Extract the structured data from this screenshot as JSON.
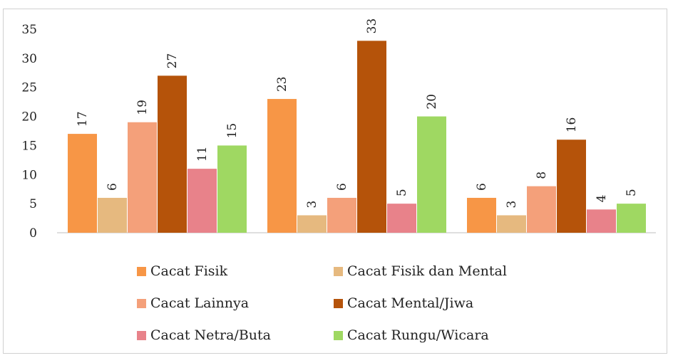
{
  "chart_data": {
    "type": "bar",
    "title": "",
    "xlabel": "",
    "ylabel": "",
    "ylim": [
      0,
      35
    ],
    "yticks": [
      "0",
      "5",
      "10",
      "15",
      "20",
      "25",
      "30",
      "35"
    ],
    "categories": [
      "",
      "",
      ""
    ],
    "grid": false,
    "legend_position": "bottom",
    "series": [
      {
        "name": "Cacat Fisik",
        "color": "#f79646",
        "values": [
          17,
          23,
          6
        ]
      },
      {
        "name": "Cacat Fisik dan Mental",
        "color": "#e6b97f",
        "values": [
          6,
          3,
          3
        ]
      },
      {
        "name": "Cacat Lainnya",
        "color": "#f4a07a",
        "values": [
          19,
          6,
          8
        ]
      },
      {
        "name": "Cacat Mental/Jiwa",
        "color": "#b5530a",
        "values": [
          27,
          33,
          16
        ]
      },
      {
        "name": "Cacat Netra/Buta",
        "color": "#e8828a",
        "values": [
          11,
          5,
          4
        ]
      },
      {
        "name": "Cacat Rungu/Wicara",
        "color": "#9fd862",
        "values": [
          15,
          20,
          5
        ]
      }
    ]
  }
}
